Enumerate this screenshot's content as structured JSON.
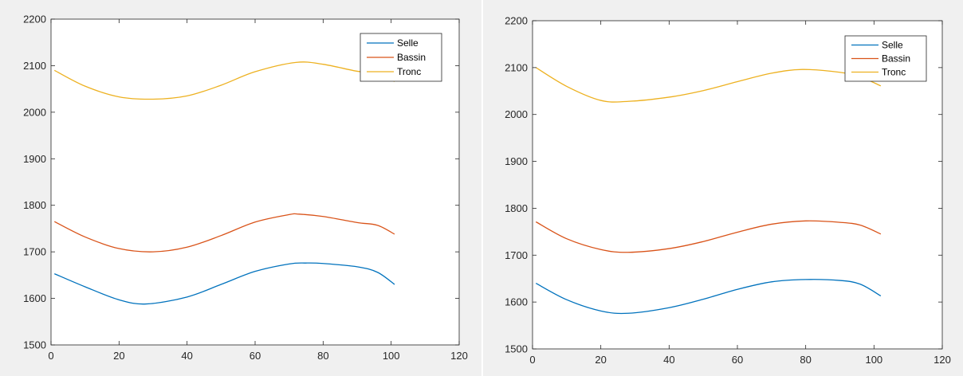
{
  "chart_data": [
    {
      "type": "line",
      "xlim": [
        0,
        120
      ],
      "ylim": [
        1500,
        2200
      ],
      "xticks": [
        0,
        20,
        40,
        60,
        80,
        100,
        120
      ],
      "yticks": [
        1500,
        1600,
        1700,
        1800,
        1900,
        2000,
        2100,
        2200
      ],
      "xtick_labels": [
        "0",
        "20",
        "40",
        "60",
        "80",
        "100",
        "120"
      ],
      "ytick_labels": [
        "1500",
        "1600",
        "1700",
        "1800",
        "1900",
        "2000",
        "2100",
        "2200"
      ],
      "grid": false,
      "legend_position": "top-right",
      "series": [
        {
          "name": "Selle",
          "color": "#0072BD",
          "x": [
            1,
            10,
            20,
            28,
            40,
            50,
            60,
            70,
            75,
            80,
            90,
            96,
            101
          ],
          "y": [
            1653,
            1625,
            1597,
            1588,
            1603,
            1630,
            1658,
            1674,
            1676,
            1675,
            1668,
            1656,
            1630
          ]
        },
        {
          "name": "Bassin",
          "color": "#D95319",
          "x": [
            1,
            10,
            20,
            30,
            40,
            50,
            60,
            70,
            73,
            80,
            90,
            96,
            101
          ],
          "y": [
            1765,
            1732,
            1707,
            1700,
            1710,
            1735,
            1764,
            1780,
            1781,
            1776,
            1763,
            1757,
            1738
          ]
        },
        {
          "name": "Tronc",
          "color": "#EDB120",
          "x": [
            1,
            10,
            20,
            30,
            40,
            50,
            60,
            72,
            80,
            90,
            96,
            101
          ],
          "y": [
            2090,
            2056,
            2033,
            2028,
            2035,
            2058,
            2087,
            2107,
            2103,
            2088,
            2083,
            2066
          ]
        }
      ]
    },
    {
      "type": "line",
      "xlim": [
        0,
        120
      ],
      "ylim": [
        1500,
        2200
      ],
      "xticks": [
        0,
        20,
        40,
        60,
        80,
        100,
        120
      ],
      "yticks": [
        1500,
        1600,
        1700,
        1800,
        1900,
        2000,
        2100,
        2200
      ],
      "xtick_labels": [
        "0",
        "20",
        "40",
        "60",
        "80",
        "100",
        "120"
      ],
      "ytick_labels": [
        "1500",
        "1600",
        "1700",
        "1800",
        "1900",
        "2000",
        "2100",
        "2200"
      ],
      "grid": false,
      "legend_position": "top-right",
      "series": [
        {
          "name": "Selle",
          "color": "#0072BD",
          "x": [
            1,
            10,
            20,
            28,
            40,
            50,
            60,
            70,
            80,
            90,
            96,
            102
          ],
          "y": [
            1640,
            1605,
            1581,
            1576,
            1588,
            1606,
            1627,
            1643,
            1648,
            1646,
            1638,
            1613
          ]
        },
        {
          "name": "Bassin",
          "color": "#D95319",
          "x": [
            1,
            10,
            20,
            28,
            40,
            50,
            60,
            70,
            80,
            90,
            96,
            102
          ],
          "y": [
            1771,
            1735,
            1712,
            1706,
            1714,
            1729,
            1749,
            1766,
            1773,
            1770,
            1764,
            1745
          ]
        },
        {
          "name": "Tronc",
          "color": "#EDB120",
          "x": [
            1,
            10,
            20,
            28,
            40,
            50,
            60,
            70,
            79,
            90,
            96,
            102
          ],
          "y": [
            2100,
            2060,
            2030,
            2028,
            2037,
            2051,
            2070,
            2088,
            2096,
            2090,
            2080,
            2061
          ]
        }
      ]
    }
  ]
}
